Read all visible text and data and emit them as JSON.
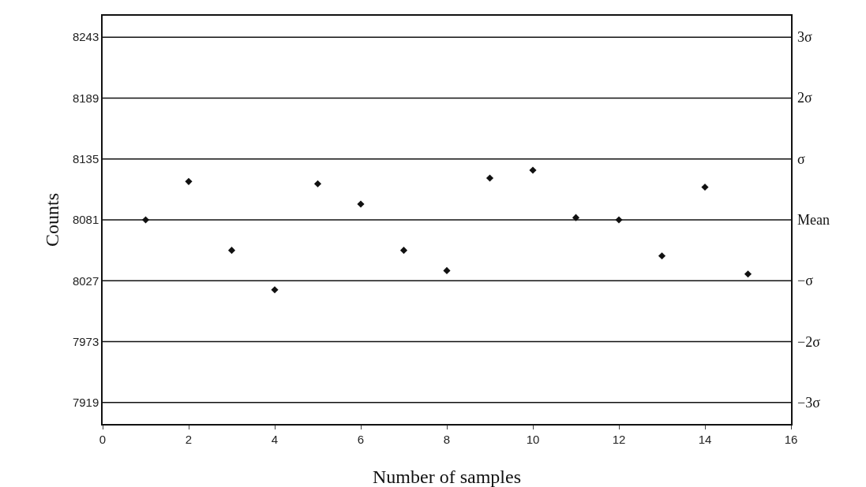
{
  "chart_data": {
    "type": "scatter",
    "xlabel": "Number of samples",
    "ylabel": "Counts",
    "x": [
      1,
      2,
      3,
      4,
      5,
      6,
      7,
      8,
      9,
      10,
      11,
      12,
      13,
      14,
      15
    ],
    "values": [
      8081,
      8115,
      8054,
      8019,
      8113,
      8095,
      8054,
      8036,
      8118,
      8125,
      8083,
      8081,
      8049,
      8110,
      8033
    ],
    "color": "#111111",
    "marker": "diamond",
    "grid": false,
    "xlim": [
      0,
      16
    ],
    "xticks": [
      0,
      2,
      4,
      6,
      8,
      10,
      12,
      14,
      16
    ],
    "ylim": [
      7900,
      8262
    ],
    "yticks": [
      7919,
      7973,
      8027,
      8081,
      8135,
      8189,
      8243
    ],
    "ref_lines": [
      {
        "axis": "y",
        "value": 7919,
        "label": "−3σ",
        "color": "#111111"
      },
      {
        "axis": "y",
        "value": 7973,
        "label": "−2σ",
        "color": "#111111"
      },
      {
        "axis": "y",
        "value": 8027,
        "label": "−σ",
        "color": "#111111"
      },
      {
        "axis": "y",
        "value": 8081,
        "label": "Mean",
        "color": "#111111"
      },
      {
        "axis": "y",
        "value": 8135,
        "label": "σ",
        "color": "#111111"
      },
      {
        "axis": "y",
        "value": 8189,
        "label": "2σ",
        "color": "#111111"
      },
      {
        "axis": "y",
        "value": 8243,
        "label": "3σ",
        "color": "#111111"
      }
    ]
  }
}
